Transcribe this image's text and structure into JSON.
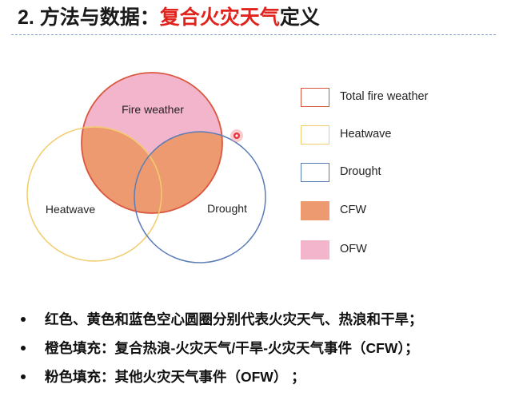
{
  "title": {
    "prefix": "2. 方法与数据：",
    "highlight": "复合火灾天气",
    "suffix": "定义"
  },
  "colors": {
    "title_highlight": "#e0231d",
    "fire_weather_stroke": "#d9573e",
    "heatwave_stroke": "#f2cd6e",
    "drought_stroke": "#5b7db7",
    "cfw_fill": "#ee9a70",
    "ofw_fill": "#f3b5cc",
    "marker": "#e8323a"
  },
  "venn": {
    "fire_weather_label": "Fire weather",
    "heatwave_label": "Heatwave",
    "drought_label": "Drought"
  },
  "legend": [
    {
      "label": "Total fire weather",
      "type": "outline",
      "color": "#d9573e"
    },
    {
      "label": "Heatwave",
      "type": "outline",
      "color": "#f2cd6e"
    },
    {
      "label": "Drought",
      "type": "outline",
      "color": "#5b7db7"
    },
    {
      "label": "CFW",
      "type": "fill",
      "color": "#ee9a70"
    },
    {
      "label": "OFW",
      "type": "fill",
      "color": "#f3b5cc"
    }
  ],
  "bullets": [
    "红色、黄色和蓝色空心圆圈分别代表火灾天气、热浪和干旱；",
    "橙色填充：复合热浪-火灾天气/干旱-火灾天气事件（CFW）；",
    "粉色填充：其他火灾天气事件（OFW）   ；"
  ]
}
